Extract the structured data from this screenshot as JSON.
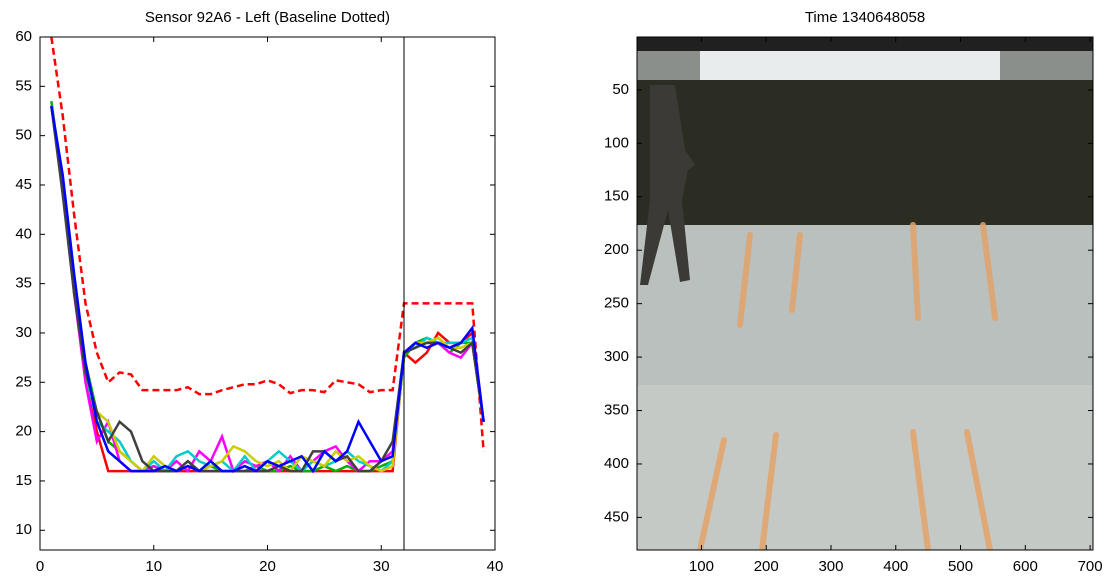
{
  "chart_data": [
    {
      "type": "line",
      "title": "Sensor 92A6 - Left (Baseline Dotted)",
      "x": [
        1,
        2,
        3,
        4,
        5,
        6,
        7,
        8,
        9,
        10,
        11,
        12,
        13,
        14,
        15,
        16,
        17,
        18,
        19,
        20,
        21,
        22,
        23,
        24,
        25,
        26,
        27,
        28,
        29,
        30,
        31,
        32,
        33,
        34,
        35,
        36,
        37,
        38,
        39
      ],
      "series": [
        {
          "color": "#ff0000",
          "style": "dashed",
          "values": [
            60,
            52,
            42,
            33,
            28,
            25,
            26,
            25.8,
            24.2,
            24.2,
            24.2,
            24.2,
            24.5,
            23.8,
            23.8,
            24.2,
            24.5,
            24.8,
            24.8,
            25.2,
            24.8,
            23.9,
            24.2,
            24.2,
            24,
            25.2,
            25,
            24.8,
            24,
            24.2,
            24.2,
            33,
            33,
            33,
            33,
            33,
            33,
            33,
            18
          ]
        },
        {
          "color": "#ff0000",
          "style": "solid",
          "values": [
            53,
            45,
            35,
            26,
            20,
            16,
            16,
            16,
            16,
            16,
            16,
            16,
            16,
            16,
            16,
            16,
            16,
            16,
            16,
            16,
            16,
            16,
            16,
            16,
            16,
            16,
            16,
            16,
            16,
            16,
            16,
            28,
            27,
            28,
            30,
            29,
            29,
            30,
            21
          ]
        },
        {
          "color": "#00b000",
          "style": "solid",
          "values": [
            53.5,
            45,
            35,
            27,
            22,
            19,
            18,
            17,
            16,
            16.5,
            16,
            16,
            16.5,
            16,
            16.5,
            16,
            16,
            16,
            16.5,
            16,
            16,
            16.5,
            16,
            16,
            16.5,
            16,
            16.5,
            16,
            16,
            16.5,
            17,
            27.5,
            29,
            29.5,
            29,
            28,
            29,
            29,
            21
          ]
        },
        {
          "color": "#ff00ff",
          "style": "solid",
          "values": [
            53,
            45,
            34,
            25,
            19,
            21,
            17,
            16,
            16,
            16.5,
            16,
            17,
            16,
            18,
            17,
            19.5,
            16,
            17,
            16.5,
            17,
            16,
            17.5,
            16,
            17,
            18,
            18.5,
            17,
            16,
            17,
            17,
            18,
            28,
            29,
            29,
            29,
            28,
            27.5,
            29,
            21
          ]
        },
        {
          "color": "#00cccc",
          "style": "solid",
          "values": [
            53,
            45,
            35,
            26,
            21,
            20,
            19,
            17,
            16,
            17,
            16,
            17.5,
            18,
            17,
            16.5,
            17,
            16,
            17.5,
            16,
            17,
            18,
            17,
            16,
            17,
            16.5,
            17,
            18,
            17,
            16.5,
            16,
            17,
            28,
            28.5,
            29.5,
            29,
            29,
            29,
            29.5,
            21
          ]
        },
        {
          "color": "#cccc00",
          "style": "solid",
          "values": [
            53,
            45,
            35,
            26,
            22,
            21,
            18,
            17,
            16,
            17.5,
            16.5,
            16,
            17,
            16,
            16.5,
            17,
            18.5,
            18,
            17,
            16.5,
            17,
            16,
            17.5,
            17,
            16.5,
            18,
            17,
            17.5,
            16.5,
            16,
            16.5,
            28,
            29,
            29,
            29.5,
            28.5,
            28.5,
            29,
            21
          ]
        },
        {
          "color": "#404040",
          "style": "solid",
          "values": [
            53,
            44,
            34,
            26,
            22,
            19,
            21,
            20,
            17,
            16,
            16,
            16,
            17,
            16,
            16,
            16,
            16,
            16,
            16,
            16,
            16.5,
            16,
            16,
            18,
            18,
            17,
            17.5,
            16,
            16,
            17,
            19,
            28,
            28.5,
            29,
            29,
            28.5,
            28,
            29,
            21
          ]
        },
        {
          "color": "#0000ff",
          "style": "solid",
          "values": [
            53,
            46,
            36,
            27,
            21,
            18,
            17,
            16,
            16,
            16,
            16.5,
            16,
            16.5,
            16,
            17,
            16,
            16,
            16.5,
            16,
            17,
            16.5,
            17,
            17.5,
            16,
            18,
            17,
            18,
            21,
            19,
            17,
            17.5,
            28,
            29,
            28.5,
            29,
            28.5,
            29,
            30.5,
            21
          ]
        }
      ],
      "vline": 32,
      "xlim": [
        0,
        40
      ],
      "xticks": [
        0,
        10,
        20,
        30,
        40
      ],
      "ylim": [
        8,
        60
      ],
      "yticks": [
        10,
        15,
        20,
        25,
        30,
        35,
        40,
        45,
        50,
        55,
        60
      ]
    },
    {
      "type": "image",
      "title": "Time 1340648058",
      "xlim": [
        0.5,
        704.5
      ],
      "xticks": [
        100,
        200,
        300,
        400,
        500,
        600,
        700
      ],
      "ylim": [
        0.5,
        480.5
      ],
      "yticks": [
        50,
        100,
        150,
        200,
        250,
        300,
        350,
        400,
        450
      ]
    }
  ]
}
